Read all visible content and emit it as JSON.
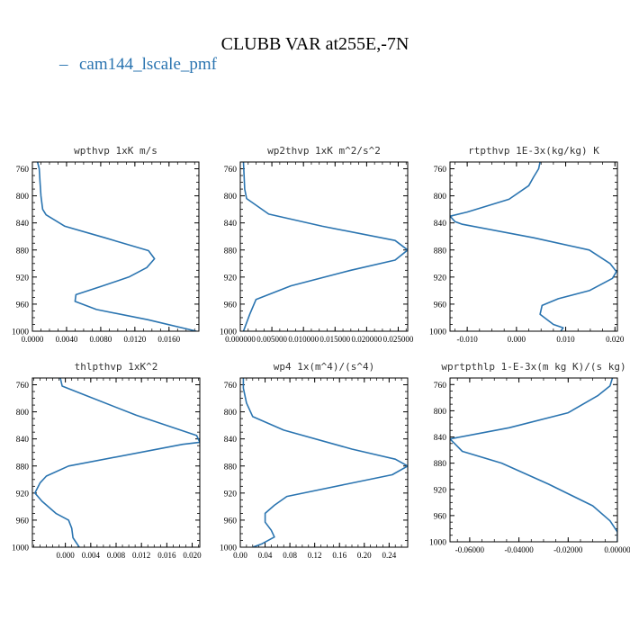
{
  "figure": {
    "title": "CLUBB VAR at255E,-7N",
    "legend_label": "cam144_lscale_pmf",
    "series_color": "#2a74b0"
  },
  "chart_data": [
    {
      "type": "line",
      "title": "wpthvp  1xK m/s",
      "xlim": [
        0,
        0.0195
      ],
      "ylim": [
        1000,
        750
      ],
      "xticks": [
        0,
        0.004,
        0.008,
        0.012,
        0.016
      ],
      "xtick_labels": [
        "0.0000",
        "0.0040",
        "0.0080",
        "0.0120",
        "0.0160"
      ],
      "yticks": [
        760,
        800,
        840,
        880,
        920,
        960,
        1000
      ],
      "ytick_labels": [
        "760",
        "800",
        "840",
        "880",
        "920",
        "960",
        "1000"
      ],
      "series": [
        {
          "values": [
            [
              0.0006,
              750
            ],
            [
              0.0008,
              760
            ],
            [
              0.0009,
              780
            ],
            [
              0.001,
              800
            ],
            [
              0.0012,
              820
            ],
            [
              0.0016,
              828
            ],
            [
              0.0038,
              845
            ],
            [
              0.0085,
              862
            ],
            [
              0.0136,
              881
            ],
            [
              0.0143,
              893
            ],
            [
              0.0134,
              906
            ],
            [
              0.0113,
              920
            ],
            [
              0.008,
              934
            ],
            [
              0.0051,
              946
            ],
            [
              0.005,
              956
            ],
            [
              0.0075,
              968
            ],
            [
              0.0135,
              983
            ],
            [
              0.0192,
              1000
            ]
          ]
        }
      ]
    },
    {
      "type": "line",
      "title": "wp2thvp  1xK m^2/s^2",
      "xlim": [
        0,
        0.0265
      ],
      "ylim": [
        1000,
        750
      ],
      "xticks": [
        0,
        0.005,
        0.01,
        0.015,
        0.02,
        0.025
      ],
      "xtick_labels": [
        "0.000000",
        "0.005000",
        "0.010000",
        "0.015000",
        "0.020000",
        "0.025000"
      ],
      "yticks": [
        760,
        800,
        840,
        880,
        920,
        960,
        1000
      ],
      "ytick_labels": [
        "760",
        "800",
        "840",
        "880",
        "920",
        "960",
        "1000"
      ],
      "series": [
        {
          "values": [
            [
              0.0005,
              750
            ],
            [
              0.0006,
              770
            ],
            [
              0.0007,
              790
            ],
            [
              0.001,
              804
            ],
            [
              0.0045,
              827
            ],
            [
              0.013,
              845
            ],
            [
              0.0245,
              866
            ],
            [
              0.0265,
              880
            ],
            [
              0.0245,
              895
            ],
            [
              0.0175,
              910
            ],
            [
              0.008,
              933
            ],
            [
              0.0025,
              953
            ],
            [
              0.0015,
              975
            ],
            [
              0.0005,
              1000
            ]
          ]
        }
      ]
    },
    {
      "type": "line",
      "title": "rtpthvp  1E-3x(kg/kg) K",
      "xlim": [
        -0.0135,
        0.0205
      ],
      "ylim": [
        1000,
        750
      ],
      "xticks": [
        -0.01,
        0,
        0.01,
        0.02
      ],
      "xtick_labels": [
        "-0.010",
        "0.000",
        "0.010",
        "0.020"
      ],
      "yticks": [
        760,
        800,
        840,
        880,
        920,
        960,
        1000
      ],
      "ytick_labels": [
        "760",
        "800",
        "840",
        "880",
        "920",
        "960",
        "1000"
      ],
      "series": [
        {
          "values": [
            [
              0.0048,
              750
            ],
            [
              0.0045,
              760
            ],
            [
              0.0035,
              772
            ],
            [
              0.0025,
              785
            ],
            [
              -0.0015,
              805
            ],
            [
              -0.01,
              824
            ],
            [
              -0.0135,
              830
            ],
            [
              -0.0125,
              838
            ],
            [
              -0.011,
              842
            ],
            [
              0.0035,
              862
            ],
            [
              0.0148,
              880
            ],
            [
              0.019,
              900
            ],
            [
              0.0203,
              912
            ],
            [
              0.0195,
              922
            ],
            [
              0.0148,
              940
            ],
            [
              0.0085,
              952
            ],
            [
              0.0052,
              962
            ],
            [
              0.0048,
              975
            ],
            [
              0.0075,
              990
            ],
            [
              0.0095,
              995
            ],
            [
              0.009,
              1000
            ]
          ]
        }
      ]
    },
    {
      "type": "line",
      "title": "thlpthvp  1xK^2",
      "xlim": [
        -0.0052,
        0.0212
      ],
      "ylim": [
        1000,
        750
      ],
      "xticks": [
        0,
        0.004,
        0.008,
        0.012,
        0.016,
        0.02
      ],
      "xtick_labels": [
        "0.000",
        "0.004",
        "0.008",
        "0.012",
        "0.016",
        "0.020"
      ],
      "yticks": [
        760,
        800,
        840,
        880,
        920,
        960,
        1000
      ],
      "ytick_labels": [
        "760",
        "800",
        "840",
        "880",
        "920",
        "960",
        "1000"
      ],
      "series": [
        {
          "values": [
            [
              -0.0008,
              750
            ],
            [
              -0.0005,
              762
            ],
            [
              0.003,
              775
            ],
            [
              0.0112,
              805
            ],
            [
              0.0207,
              835
            ],
            [
              0.0212,
              845
            ],
            [
              0.0185,
              848
            ],
            [
              0.0005,
              880
            ],
            [
              -0.003,
              895
            ],
            [
              -0.004,
              905
            ],
            [
              -0.0048,
              920
            ],
            [
              -0.0037,
              932
            ],
            [
              -0.0015,
              950
            ],
            [
              0.0005,
              960
            ],
            [
              0.001,
              972
            ],
            [
              0.0012,
              986
            ],
            [
              0.0022,
              1000
            ]
          ]
        }
      ]
    },
    {
      "type": "line",
      "title": "wp4  1x(m^4)/(s^4)",
      "xlim": [
        0,
        0.27
      ],
      "ylim": [
        1000,
        750
      ],
      "xticks": [
        0,
        0.04,
        0.08,
        0.12,
        0.16,
        0.2,
        0.24
      ],
      "xtick_labels": [
        "0.00",
        "0.04",
        "0.08",
        "0.12",
        "0.16",
        "0.20",
        "0.24"
      ],
      "yticks": [
        760,
        800,
        840,
        880,
        920,
        960,
        1000
      ],
      "ytick_labels": [
        "760",
        "800",
        "840",
        "880",
        "920",
        "960",
        "1000"
      ],
      "series": [
        {
          "values": [
            [
              0.005,
              750
            ],
            [
              0.005,
              765
            ],
            [
              0.01,
              787
            ],
            [
              0.02,
              807
            ],
            [
              0.07,
              827
            ],
            [
              0.18,
              855
            ],
            [
              0.25,
              870
            ],
            [
              0.27,
              880
            ],
            [
              0.245,
              893
            ],
            [
              0.17,
              907
            ],
            [
              0.075,
              925
            ],
            [
              0.055,
              938
            ],
            [
              0.04,
              950
            ],
            [
              0.04,
              963
            ],
            [
              0.05,
              975
            ],
            [
              0.055,
              985
            ],
            [
              0.035,
              995
            ],
            [
              0.02,
              1000
            ]
          ]
        }
      ]
    },
    {
      "type": "line",
      "title": "wprtpthlp  1-E-3x(m kg K)/(s kg)",
      "xlim": [
        -0.068,
        0
      ],
      "ylim": [
        1000,
        750
      ],
      "xticks": [
        -0.06,
        -0.04,
        -0.02,
        0
      ],
      "xtick_labels": [
        "-0.06000",
        "-0.04000",
        "-0.02000",
        "0.00000"
      ],
      "yticks": [
        760,
        800,
        840,
        880,
        920,
        960,
        1000
      ],
      "ytick_labels": [
        "760",
        "800",
        "840",
        "880",
        "920",
        "960",
        "1000"
      ],
      "series": [
        {
          "values": [
            [
              -0.002,
              750
            ],
            [
              -0.003,
              762
            ],
            [
              -0.008,
              777
            ],
            [
              -0.02,
              803
            ],
            [
              -0.044,
              826
            ],
            [
              -0.068,
              843
            ],
            [
              -0.063,
              862
            ],
            [
              -0.047,
              880
            ],
            [
              -0.028,
              912
            ],
            [
              -0.01,
              945
            ],
            [
              -0.003,
              968
            ],
            [
              0,
              985
            ],
            [
              0,
              1000
            ]
          ]
        }
      ]
    }
  ]
}
